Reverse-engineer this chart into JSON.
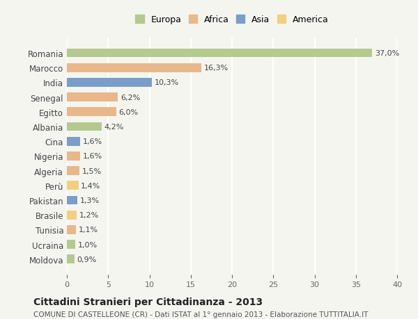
{
  "countries": [
    "Romania",
    "Marocco",
    "India",
    "Senegal",
    "Egitto",
    "Albania",
    "Cina",
    "Nigeria",
    "Algeria",
    "Perù",
    "Pakistan",
    "Brasile",
    "Tunisia",
    "Ucraina",
    "Moldova"
  ],
  "values": [
    37.0,
    16.3,
    10.3,
    6.2,
    6.0,
    4.2,
    1.6,
    1.6,
    1.5,
    1.4,
    1.3,
    1.2,
    1.1,
    1.0,
    0.9
  ],
  "labels": [
    "37,0%",
    "16,3%",
    "10,3%",
    "6,2%",
    "6,0%",
    "4,2%",
    "1,6%",
    "1,6%",
    "1,5%",
    "1,4%",
    "1,3%",
    "1,2%",
    "1,1%",
    "1,0%",
    "0,9%"
  ],
  "continent": [
    "Europa",
    "Africa",
    "Asia",
    "Africa",
    "Africa",
    "Europa",
    "Asia",
    "Africa",
    "Africa",
    "America",
    "Asia",
    "America",
    "Africa",
    "Europa",
    "Europa"
  ],
  "colors": {
    "Europa": "#b5c98e",
    "Africa": "#e8b88a",
    "Asia": "#7b9ec7",
    "America": "#f0d080"
  },
  "legend_order": [
    "Europa",
    "Africa",
    "Asia",
    "America"
  ],
  "title": "Cittadini Stranieri per Cittadinanza - 2013",
  "subtitle": "COMUNE DI CASTELLEONE (CR) - Dati ISTAT al 1° gennaio 2013 - Elaborazione TUTTITALIA.IT",
  "xlim": [
    0,
    40
  ],
  "xticks": [
    0,
    5,
    10,
    15,
    20,
    25,
    30,
    35,
    40
  ],
  "background_color": "#f5f5f0",
  "grid_color": "#ffffff",
  "bar_height": 0.6
}
